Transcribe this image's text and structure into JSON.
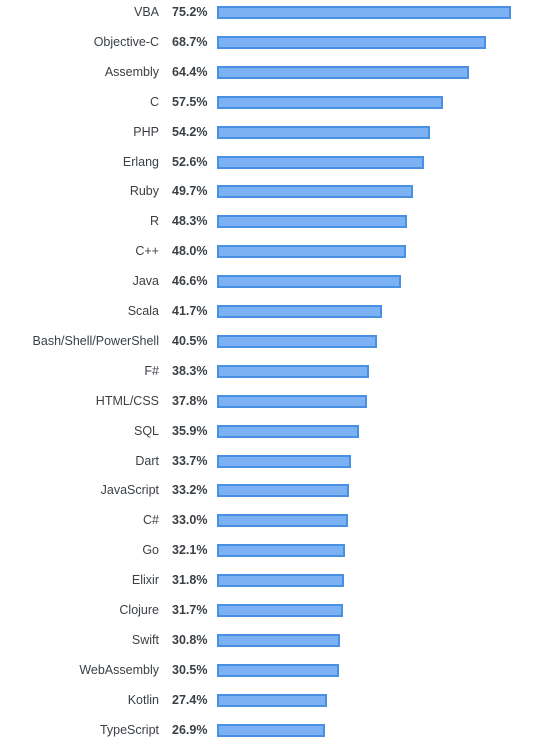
{
  "chart_data": {
    "type": "bar",
    "orientation": "horizontal",
    "categories": [
      "VBA",
      "Objective-C",
      "Assembly",
      "C",
      "PHP",
      "Erlang",
      "Ruby",
      "R",
      "C++",
      "Java",
      "Scala",
      "Bash/Shell/PowerShell",
      "F#",
      "HTML/CSS",
      "SQL",
      "Dart",
      "JavaScript",
      "C#",
      "Go",
      "Elixir",
      "Clojure",
      "Swift",
      "WebAssembly",
      "Kotlin",
      "TypeScript"
    ],
    "values": [
      75.2,
      68.7,
      64.4,
      57.5,
      54.2,
      52.6,
      49.7,
      48.3,
      48.0,
      46.6,
      41.7,
      40.5,
      38.3,
      37.8,
      35.9,
      33.7,
      33.2,
      33.0,
      32.1,
      31.8,
      31.7,
      30.8,
      30.5,
      27.4,
      26.9
    ],
    "labels": [
      "75.2%",
      "68.7%",
      "64.4%",
      "57.5%",
      "54.2%",
      "52.6%",
      "49.7%",
      "48.3%",
      "48.0%",
      "46.6%",
      "41.7%",
      "40.5%",
      "38.3%",
      "37.8%",
      "35.9%",
      "33.7%",
      "33.2%",
      "33.0%",
      "32.1%",
      "31.8%",
      "31.7%",
      "30.8%",
      "30.5%",
      "27.4%",
      "26.9%"
    ],
    "xlim": [
      0,
      75.2
    ],
    "grid": false,
    "colors": {
      "bar_fill": "#7cb2f4",
      "bar_border": "#4a90e2",
      "text": "#3b4045"
    }
  }
}
